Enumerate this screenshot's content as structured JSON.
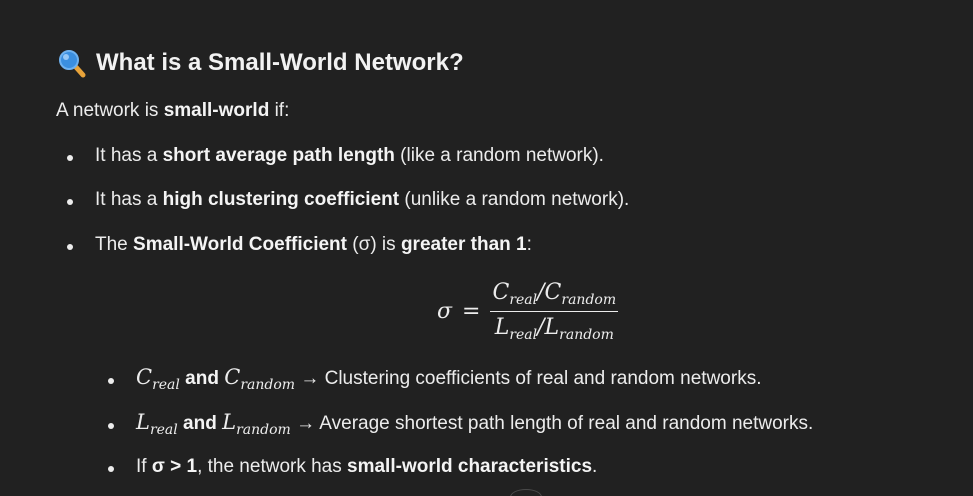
{
  "heading": {
    "title": "What is a Small-World Network?",
    "icon": "magnifying-glass-icon"
  },
  "intro": {
    "prefix": "A network is ",
    "bold": "small-world",
    "suffix": " if:"
  },
  "bullets": [
    {
      "prefix": "It has a ",
      "bold": "short average path length",
      "suffix": " (like a random network)."
    },
    {
      "prefix": "It has a ",
      "bold": "high clustering coefficient",
      "suffix": " (unlike a random network)."
    },
    {
      "prefix": "The ",
      "bold": "Small-World Coefficient",
      "middle": " (σ) is ",
      "bold2": "greater than 1",
      "suffix": ":"
    }
  ],
  "formula": {
    "lhs": "σ",
    "eq": "=",
    "num_a": "C",
    "num_a_sub": "real",
    "num_b": "C",
    "num_b_sub": "random",
    "den_a": "L",
    "den_a_sub": "real",
    "den_b": "L",
    "den_b_sub": "random",
    "slash": "/"
  },
  "sub_bullets": [
    {
      "sym1": "C",
      "sym1_sub": "real",
      "and": " and ",
      "sym2": "C",
      "sym2_sub": "random",
      "text": " → Clustering coefficients of real and random networks."
    },
    {
      "sym1": "L",
      "sym1_sub": "real",
      "and": " and ",
      "sym2": "L",
      "sym2_sub": "random",
      "text": " → Average shortest path length of real and random networks."
    },
    {
      "prefix": "If ",
      "bold": "σ > 1",
      "middle": ", the network has ",
      "bold2": "small-world characteristics",
      "suffix": "."
    }
  ],
  "colors": {
    "background": "#212121",
    "text": "#ececec",
    "icon_blue": "#3b8fe0",
    "icon_handle": "#e8a33a"
  }
}
